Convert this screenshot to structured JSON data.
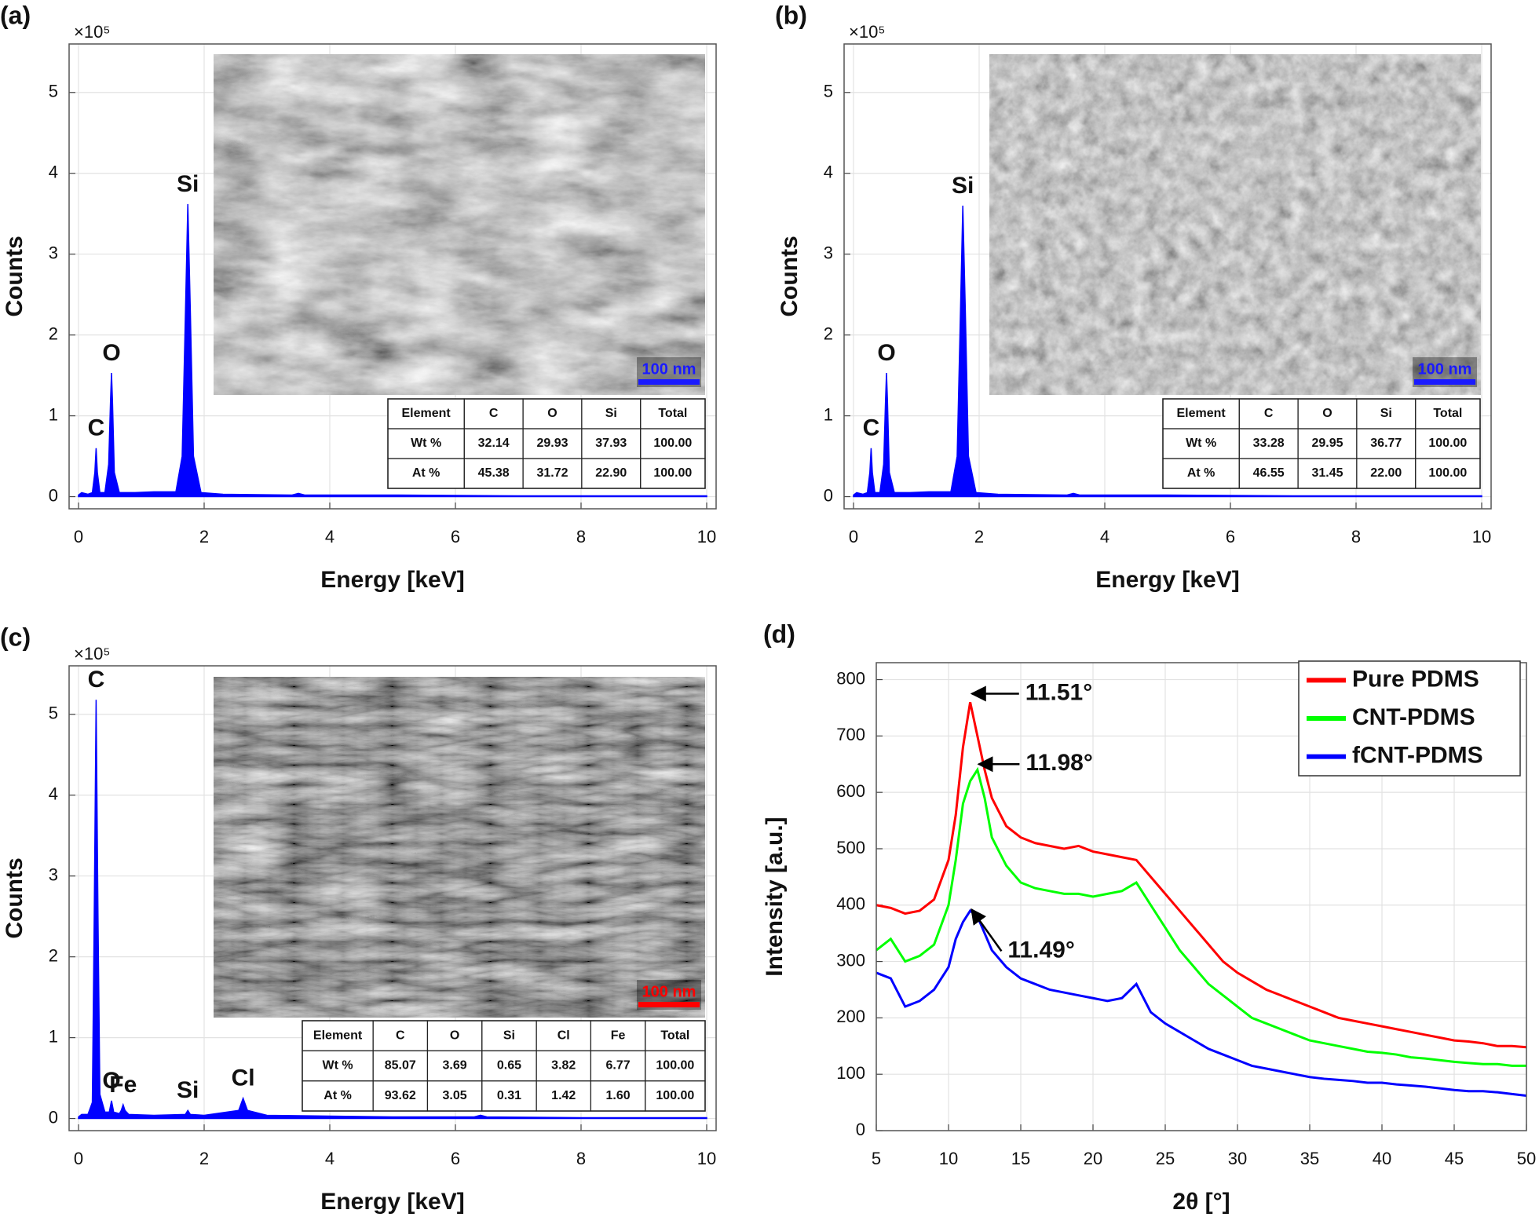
{
  "chart_data": [
    {
      "type": "area",
      "label": "(a)",
      "y_multiplier": "×10⁵",
      "xlabel": "Energy [keV]",
      "ylabel": "Counts",
      "color": "#0000ff",
      "x": [
        0,
        0.05,
        0.15,
        0.22,
        0.26,
        0.28,
        0.3,
        0.34,
        0.42,
        0.48,
        0.51,
        0.525,
        0.54,
        0.57,
        0.65,
        0.9,
        1.2,
        1.55,
        1.65,
        1.7,
        1.74,
        1.78,
        1.83,
        1.95,
        2.3,
        3.4,
        3.5,
        3.6,
        5,
        7,
        10
      ],
      "values": [
        0.02,
        0.05,
        0.03,
        0.05,
        0.3,
        0.6,
        0.3,
        0.05,
        0.05,
        0.4,
        1.2,
        1.53,
        1.2,
        0.3,
        0.05,
        0.05,
        0.06,
        0.06,
        0.5,
        2.2,
        3.62,
        2.3,
        0.5,
        0.05,
        0.03,
        0.02,
        0.04,
        0.02,
        0.02,
        0.01,
        0.01
      ],
      "xlim": [
        -0.15,
        10.15
      ],
      "ylim": [
        -0.15,
        5.6
      ],
      "xticks": [
        0,
        2,
        4,
        6,
        8,
        10
      ],
      "yticks": [
        0,
        1,
        2,
        3,
        4,
        5
      ],
      "grid": true,
      "annotations": [
        {
          "text": "C",
          "x": 0.28,
          "y": 0.6
        },
        {
          "text": "O",
          "x": 0.525,
          "y": 1.53
        },
        {
          "text": "Si",
          "x": 1.74,
          "y": 3.62
        }
      ],
      "scale_bar": {
        "label": "100 nm",
        "color": "#1a1aff"
      },
      "table": {
        "header": [
          "Element",
          "C",
          "O",
          "Si",
          "Total"
        ],
        "rows": [
          [
            "Wt %",
            "32.14",
            "29.93",
            "37.93",
            "100.00"
          ],
          [
            "At %",
            "45.38",
            "31.72",
            "22.90",
            "100.00"
          ]
        ]
      }
    },
    {
      "type": "area",
      "label": "(b)",
      "y_multiplier": "×10⁵",
      "xlabel": "Energy [keV]",
      "ylabel": "Counts",
      "color": "#0000ff",
      "x": [
        0,
        0.05,
        0.15,
        0.22,
        0.26,
        0.28,
        0.3,
        0.34,
        0.42,
        0.48,
        0.51,
        0.525,
        0.54,
        0.57,
        0.65,
        0.9,
        1.2,
        1.55,
        1.65,
        1.7,
        1.74,
        1.78,
        1.83,
        1.95,
        2.3,
        3.4,
        3.5,
        3.6,
        5,
        7,
        10
      ],
      "values": [
        0.02,
        0.05,
        0.03,
        0.05,
        0.3,
        0.6,
        0.3,
        0.05,
        0.05,
        0.4,
        1.2,
        1.53,
        1.2,
        0.3,
        0.05,
        0.05,
        0.06,
        0.06,
        0.5,
        2.2,
        3.6,
        2.3,
        0.5,
        0.05,
        0.03,
        0.02,
        0.04,
        0.02,
        0.02,
        0.01,
        0.01
      ],
      "xlim": [
        -0.15,
        10.15
      ],
      "ylim": [
        -0.15,
        5.6
      ],
      "xticks": [
        0,
        2,
        4,
        6,
        8,
        10
      ],
      "yticks": [
        0,
        1,
        2,
        3,
        4,
        5
      ],
      "grid": true,
      "annotations": [
        {
          "text": "C",
          "x": 0.28,
          "y": 0.6
        },
        {
          "text": "O",
          "x": 0.525,
          "y": 1.53
        },
        {
          "text": "Si",
          "x": 1.74,
          "y": 3.6
        }
      ],
      "scale_bar": {
        "label": "100 nm",
        "color": "#1a1aff"
      },
      "table": {
        "header": [
          "Element",
          "C",
          "O",
          "Si",
          "Total"
        ],
        "rows": [
          [
            "Wt %",
            "33.28",
            "29.95",
            "36.77",
            "100.00"
          ],
          [
            "At %",
            "46.55",
            "31.45",
            "22.00",
            "100.00"
          ]
        ]
      }
    },
    {
      "type": "area",
      "label": "(c)",
      "y_multiplier": "×10⁵",
      "xlabel": "Energy [keV]",
      "ylabel": "Counts",
      "color": "#0000ff",
      "x": [
        0,
        0.05,
        0.15,
        0.22,
        0.25,
        0.28,
        0.31,
        0.34,
        0.42,
        0.49,
        0.525,
        0.56,
        0.65,
        0.68,
        0.71,
        0.74,
        0.8,
        1.2,
        1.7,
        1.74,
        1.78,
        2.0,
        2.55,
        2.62,
        2.69,
        3.0,
        5,
        6.3,
        6.4,
        6.5,
        8,
        10
      ],
      "values": [
        0.02,
        0.05,
        0.05,
        0.2,
        2.5,
        5.18,
        2.5,
        0.3,
        0.08,
        0.08,
        0.22,
        0.08,
        0.06,
        0.1,
        0.17,
        0.1,
        0.05,
        0.04,
        0.05,
        0.1,
        0.05,
        0.04,
        0.1,
        0.25,
        0.1,
        0.04,
        0.02,
        0.02,
        0.04,
        0.02,
        0.01,
        0.01
      ],
      "xlim": [
        -0.15,
        10.15
      ],
      "ylim": [
        -0.15,
        5.6
      ],
      "xticks": [
        0,
        2,
        4,
        6,
        8,
        10
      ],
      "yticks": [
        0,
        1,
        2,
        3,
        4,
        5
      ],
      "grid": true,
      "annotations": [
        {
          "text": "C",
          "x": 0.28,
          "y": 5.18
        },
        {
          "text": "O",
          "x": 0.525,
          "y": 0.22
        },
        {
          "text": "Fe",
          "x": 0.71,
          "y": 0.17
        },
        {
          "text": "Si",
          "x": 1.74,
          "y": 0.1
        },
        {
          "text": "Cl",
          "x": 2.62,
          "y": 0.25
        }
      ],
      "scale_bar": {
        "label": "100 nm",
        "color": "#ff0000"
      },
      "table": {
        "header": [
          "Element",
          "C",
          "O",
          "Si",
          "Cl",
          "Fe",
          "Total"
        ],
        "rows": [
          [
            "Wt %",
            "85.07",
            "3.69",
            "0.65",
            "3.82",
            "6.77",
            "100.00"
          ],
          [
            "At %",
            "93.62",
            "3.05",
            "0.31",
            "1.42",
            "1.60",
            "100.00"
          ]
        ]
      }
    },
    {
      "type": "line",
      "label": "(d)",
      "xlabel": "2θ [°]",
      "ylabel": "Intensity [a.u.]",
      "x": [
        5,
        6,
        7,
        8,
        9,
        10,
        10.5,
        11,
        11.5,
        12,
        12.5,
        13,
        14,
        15,
        16,
        17,
        18,
        19,
        20,
        21,
        22,
        23,
        24,
        25,
        26,
        27,
        28,
        29,
        30,
        31,
        32,
        33,
        34,
        35,
        36,
        37,
        38,
        39,
        40,
        41,
        42,
        43,
        44,
        45,
        46,
        47,
        48,
        49,
        50
      ],
      "series": [
        {
          "name": "Pure PDMS",
          "color": "#ff0000",
          "values": [
            400,
            395,
            385,
            390,
            410,
            480,
            560,
            680,
            760,
            700,
            640,
            590,
            540,
            520,
            510,
            505,
            500,
            505,
            495,
            490,
            485,
            480,
            450,
            420,
            390,
            360,
            330,
            300,
            280,
            265,
            250,
            240,
            230,
            220,
            210,
            200,
            195,
            190,
            185,
            180,
            175,
            170,
            165,
            160,
            158,
            155,
            150,
            150,
            148
          ]
        },
        {
          "name": "CNT-PDMS",
          "color": "#00ff00",
          "values": [
            320,
            340,
            300,
            310,
            330,
            400,
            480,
            580,
            620,
            640,
            590,
            520,
            470,
            440,
            430,
            425,
            420,
            420,
            415,
            420,
            425,
            440,
            400,
            360,
            320,
            290,
            260,
            240,
            220,
            200,
            190,
            180,
            170,
            160,
            155,
            150,
            145,
            140,
            138,
            135,
            130,
            128,
            125,
            122,
            120,
            118,
            118,
            115,
            115
          ]
        },
        {
          "name": "fCNT-PDMS",
          "color": "#0000ff",
          "values": [
            280,
            270,
            220,
            230,
            250,
            290,
            340,
            370,
            390,
            380,
            350,
            320,
            290,
            270,
            260,
            250,
            245,
            240,
            235,
            230,
            235,
            260,
            210,
            190,
            175,
            160,
            145,
            135,
            125,
            115,
            110,
            105,
            100,
            95,
            92,
            90,
            88,
            85,
            85,
            82,
            80,
            78,
            75,
            72,
            70,
            70,
            68,
            65,
            62
          ]
        }
      ],
      "xlim": [
        5,
        50
      ],
      "ylim": [
        0,
        830
      ],
      "xticks": [
        5,
        10,
        15,
        20,
        25,
        30,
        35,
        40,
        45,
        50
      ],
      "yticks": [
        0,
        100,
        200,
        300,
        400,
        500,
        600,
        700,
        800
      ],
      "grid": true,
      "legend": "upper right",
      "annotations": [
        {
          "text": "11.51°",
          "x": 11.51,
          "y": 775
        },
        {
          "text": "11.98°",
          "x": 11.98,
          "y": 650
        },
        {
          "text": "11.49°",
          "x": 11.49,
          "y": 395
        }
      ]
    }
  ]
}
